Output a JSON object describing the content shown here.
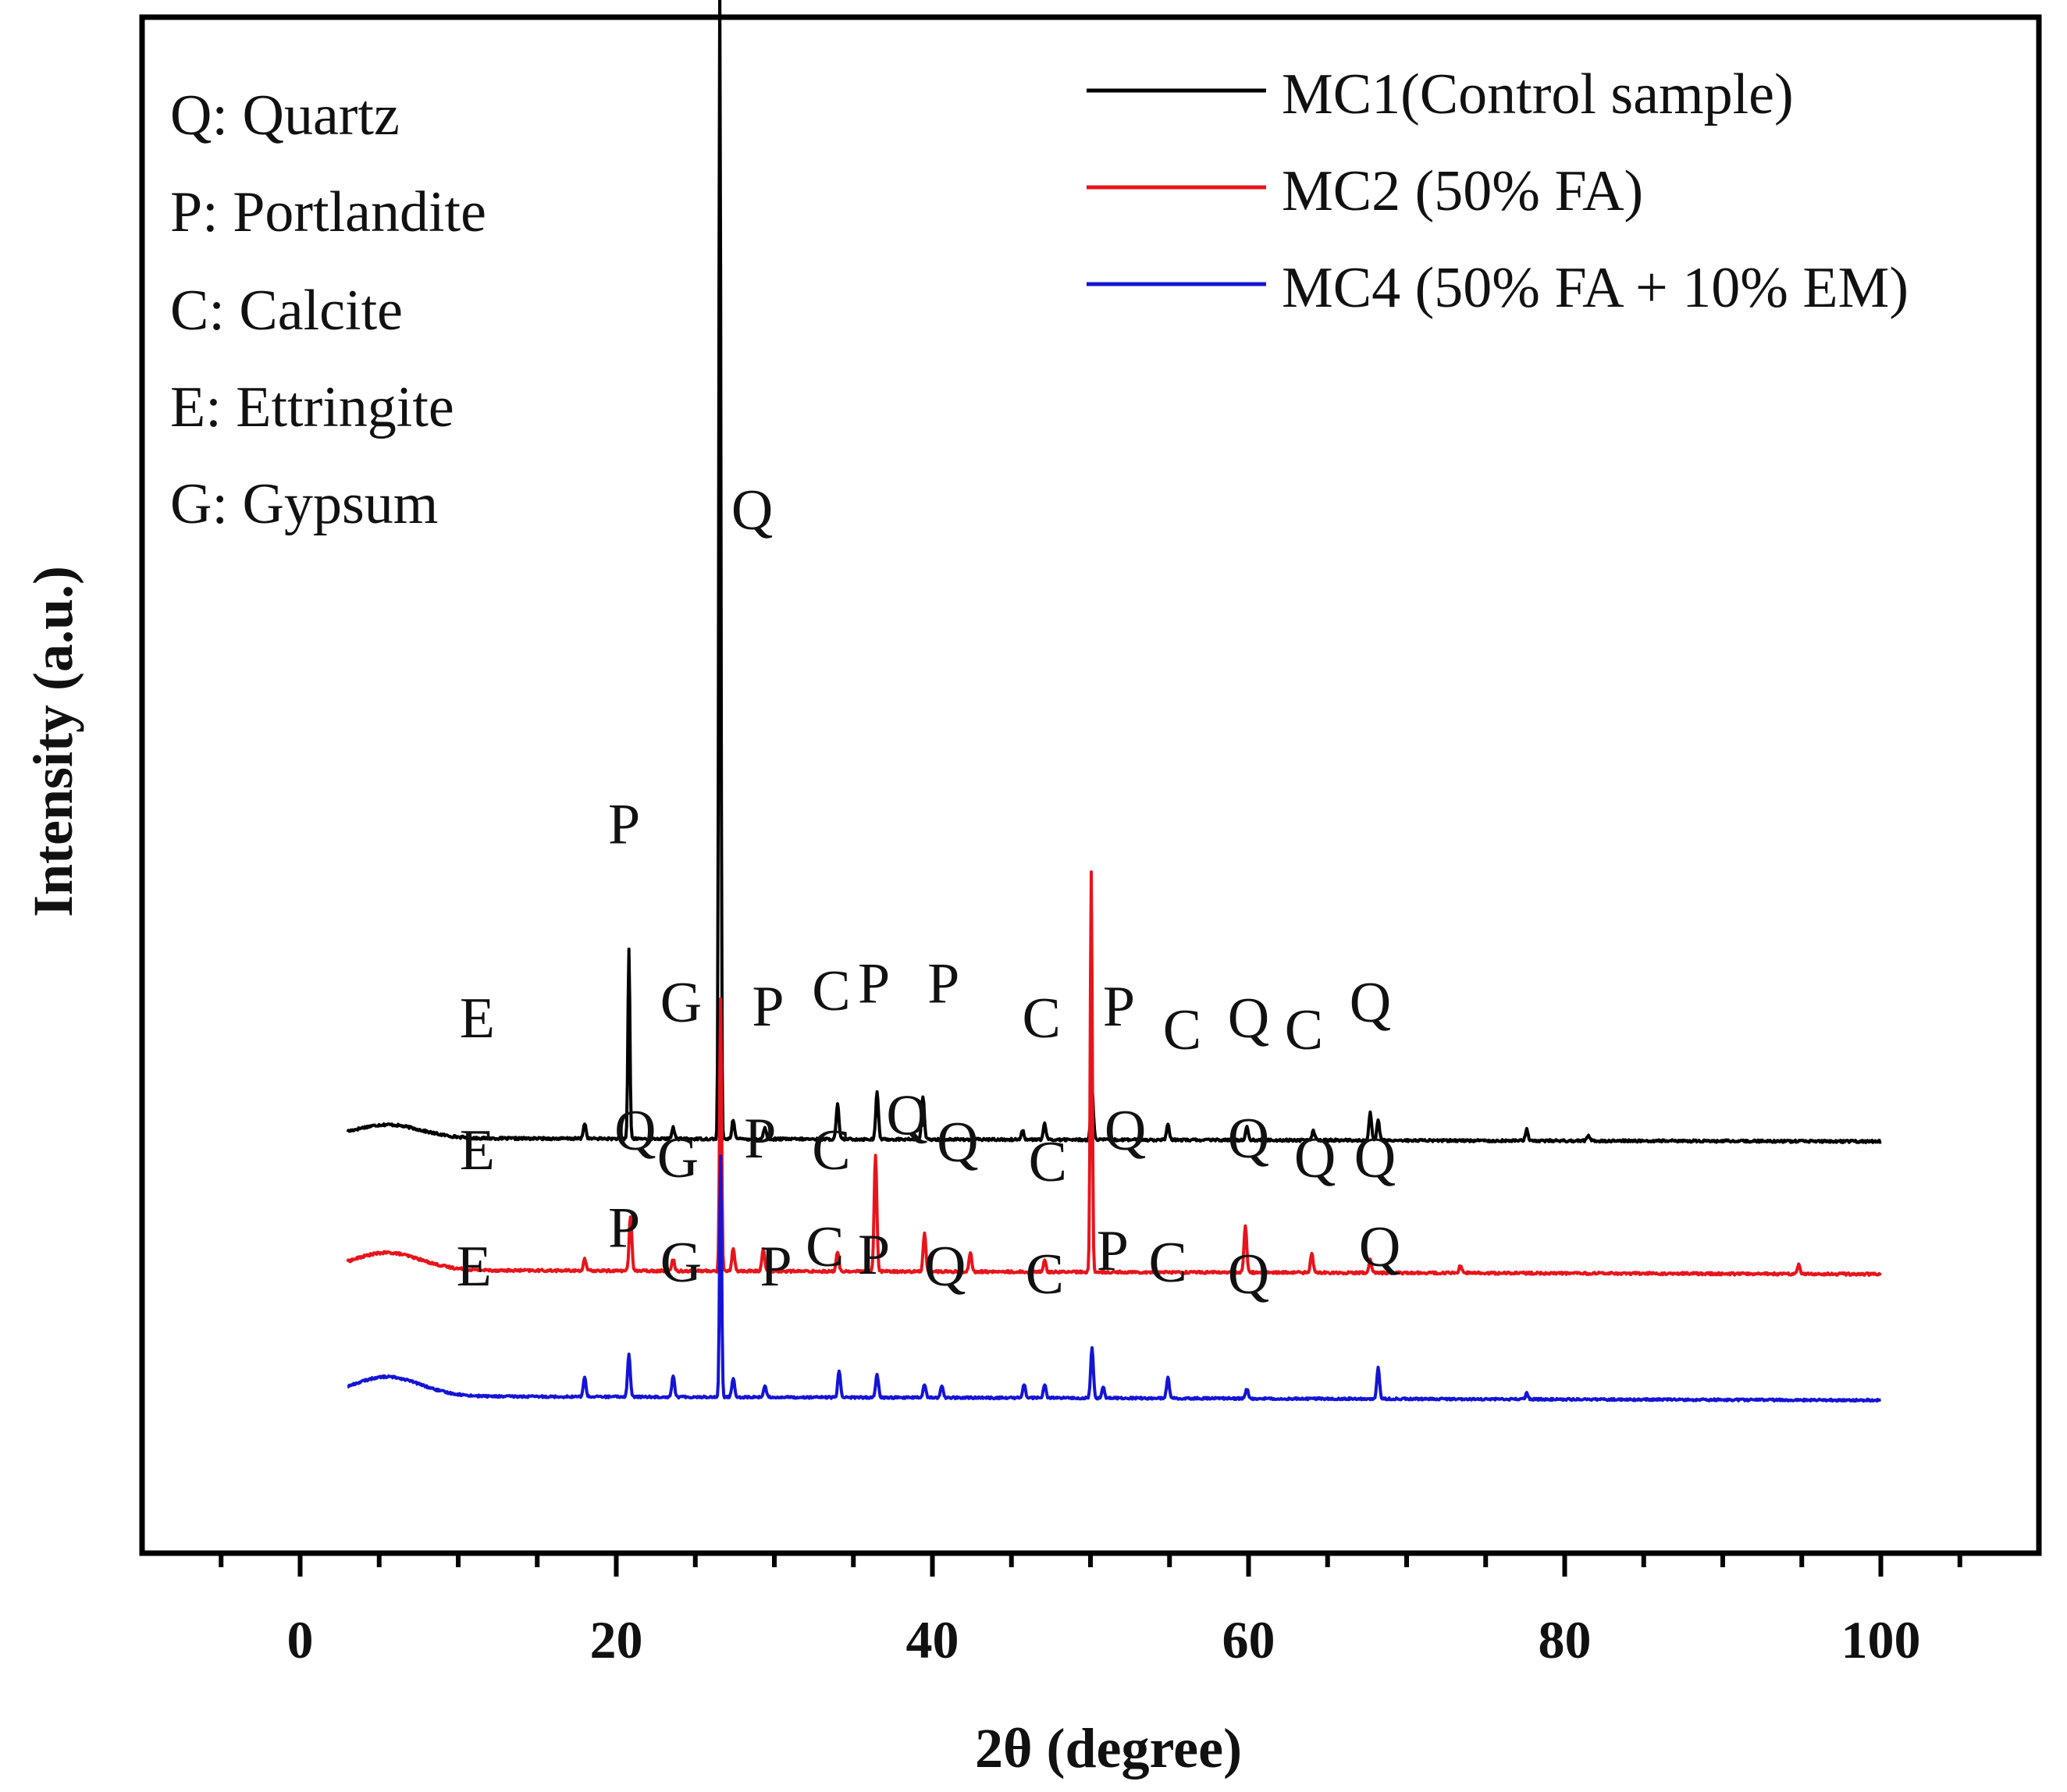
{
  "chart_data": {
    "type": "line",
    "title": "",
    "xlabel": "2θ (degree)",
    "ylabel": "Intensity (a.u.)",
    "xlim": [
      -10,
      110
    ],
    "ylim": [
      -3.1,
      36.5
    ],
    "x_ticks": [
      0,
      20,
      40,
      60,
      80,
      100
    ],
    "x_tick_labels": [
      "0",
      "20",
      "40",
      "60",
      "80",
      "100"
    ],
    "legend_position": "top-right",
    "phase_key": [
      {
        "text": "Q: Quartz"
      },
      {
        "text": "P: Portlandite"
      },
      {
        "text": "C: Calcite"
      },
      {
        "text": "E: Ettringite"
      },
      {
        "text": "G: Gypsum"
      }
    ],
    "series": [
      {
        "name": "MC1(Control sample)",
        "color": "#000000",
        "baseline": 7.6,
        "hump_height": 0.35,
        "noise": 0.06,
        "peaks": [
          {
            "x": 18.0,
            "h": 0.4
          },
          {
            "x": 20.8,
            "h": 4.9
          },
          {
            "x": 23.6,
            "h": 0.3
          },
          {
            "x": 26.55,
            "h": 30.0
          },
          {
            "x": 27.4,
            "h": 0.5
          },
          {
            "x": 29.4,
            "h": 0.3
          },
          {
            "x": 34.0,
            "h": 0.9
          },
          {
            "x": 36.5,
            "h": 1.2
          },
          {
            "x": 39.4,
            "h": 1.1
          },
          {
            "x": 45.7,
            "h": 0.25
          },
          {
            "x": 47.1,
            "h": 0.4
          },
          {
            "x": 50.1,
            "h": 1.3
          },
          {
            "x": 54.9,
            "h": 0.4
          },
          {
            "x": 59.9,
            "h": 0.35
          },
          {
            "x": 64.1,
            "h": 0.25
          },
          {
            "x": 67.7,
            "h": 0.7
          },
          {
            "x": 68.2,
            "h": 0.5
          },
          {
            "x": 77.6,
            "h": 0.3
          },
          {
            "x": 81.5,
            "h": 0.15
          }
        ],
        "labels": [
          {
            "text": "E",
            "x": 11.2,
            "y": 10.2
          },
          {
            "text": "P",
            "x": 20.5,
            "y": 15.2
          },
          {
            "text": "Q",
            "x": 28.6,
            "y": 23.3
          },
          {
            "text": "G",
            "x": 24.1,
            "y": 10.6
          },
          {
            "text": "P",
            "x": 29.6,
            "y": 10.5
          },
          {
            "text": "C",
            "x": 33.6,
            "y": 10.9
          },
          {
            "text": "P",
            "x": 36.3,
            "y": 11.1
          },
          {
            "text": "P",
            "x": 40.7,
            "y": 11.1
          },
          {
            "text": "C",
            "x": 46.9,
            "y": 10.2
          },
          {
            "text": "P",
            "x": 51.8,
            "y": 10.5
          },
          {
            "text": "C",
            "x": 55.8,
            "y": 9.9
          },
          {
            "text": "Q",
            "x": 60.0,
            "y": 10.2
          },
          {
            "text": "C",
            "x": 63.5,
            "y": 9.9
          },
          {
            "text": "Q",
            "x": 67.7,
            "y": 10.6
          }
        ]
      },
      {
        "name": "MC2 (50% FA)",
        "color": "#e8141c",
        "baseline": 4.2,
        "hump_height": 0.45,
        "noise": 0.06,
        "peaks": [
          {
            "x": 18.0,
            "h": 0.3
          },
          {
            "x": 20.9,
            "h": 1.4
          },
          {
            "x": 23.6,
            "h": 0.3
          },
          {
            "x": 26.6,
            "h": 7.0
          },
          {
            "x": 27.4,
            "h": 0.6
          },
          {
            "x": 29.3,
            "h": 0.6
          },
          {
            "x": 34.0,
            "h": 0.5
          },
          {
            "x": 36.4,
            "h": 3.0
          },
          {
            "x": 39.5,
            "h": 1.0
          },
          {
            "x": 42.4,
            "h": 0.5
          },
          {
            "x": 47.1,
            "h": 0.3
          },
          {
            "x": 50.05,
            "h": 10.3
          },
          {
            "x": 59.8,
            "h": 1.2
          },
          {
            "x": 64.0,
            "h": 0.5
          },
          {
            "x": 67.7,
            "h": 0.35
          },
          {
            "x": 73.4,
            "h": 0.2
          },
          {
            "x": 94.8,
            "h": 0.25
          }
        ],
        "labels": [
          {
            "text": "E",
            "x": 11.2,
            "y": 6.8
          },
          {
            "text": "Q",
            "x": 21.2,
            "y": 7.3
          },
          {
            "text": "G",
            "x": 23.9,
            "y": 6.6
          },
          {
            "text": "P",
            "x": 29.1,
            "y": 7.1
          },
          {
            "text": "C",
            "x": 33.6,
            "y": 6.8
          },
          {
            "text": "Q",
            "x": 38.4,
            "y": 7.7
          },
          {
            "text": "Q",
            "x": 41.6,
            "y": 7.0
          },
          {
            "text": "C",
            "x": 47.3,
            "y": 6.5
          },
          {
            "text": "Q",
            "x": 52.2,
            "y": 7.3
          },
          {
            "text": "Q",
            "x": 60.0,
            "y": 7.1
          },
          {
            "text": "Q",
            "x": 64.2,
            "y": 6.6
          },
          {
            "text": "Q",
            "x": 68.0,
            "y": 6.6
          }
        ]
      },
      {
        "name": "MC4 (50% FA + 10% EM)",
        "color": "#1414d6",
        "baseline": 0.95,
        "hump_height": 0.5,
        "noise": 0.05,
        "peaks": [
          {
            "x": 18.0,
            "h": 0.5
          },
          {
            "x": 20.8,
            "h": 1.1
          },
          {
            "x": 23.6,
            "h": 0.55
          },
          {
            "x": 26.6,
            "h": 6.2
          },
          {
            "x": 27.4,
            "h": 0.5
          },
          {
            "x": 29.4,
            "h": 0.3
          },
          {
            "x": 34.1,
            "h": 0.7
          },
          {
            "x": 36.5,
            "h": 0.6
          },
          {
            "x": 39.5,
            "h": 0.35
          },
          {
            "x": 40.6,
            "h": 0.3
          },
          {
            "x": 45.8,
            "h": 0.35
          },
          {
            "x": 47.1,
            "h": 0.35
          },
          {
            "x": 50.1,
            "h": 1.3
          },
          {
            "x": 50.8,
            "h": 0.3
          },
          {
            "x": 54.9,
            "h": 0.55
          },
          {
            "x": 59.9,
            "h": 0.25
          },
          {
            "x": 68.2,
            "h": 0.8
          },
          {
            "x": 77.6,
            "h": 0.15
          }
        ],
        "labels": [
          {
            "text": "E",
            "x": 11.0,
            "y": 3.8
          },
          {
            "text": "P",
            "x": 20.5,
            "y": 4.8
          },
          {
            "text": "G",
            "x": 24.1,
            "y": 3.9
          },
          {
            "text": "P",
            "x": 30.1,
            "y": 3.8
          },
          {
            "text": "C",
            "x": 33.2,
            "y": 4.3
          },
          {
            "text": "P",
            "x": 36.3,
            "y": 4.1
          },
          {
            "text": "Q",
            "x": 40.8,
            "y": 3.8
          },
          {
            "text": "C",
            "x": 47.1,
            "y": 3.6
          },
          {
            "text": "P",
            "x": 51.4,
            "y": 4.2
          },
          {
            "text": "C",
            "x": 54.9,
            "y": 3.9
          },
          {
            "text": "Q",
            "x": 60.0,
            "y": 3.6
          },
          {
            "text": "Q",
            "x": 68.3,
            "y": 4.3
          }
        ]
      }
    ]
  }
}
